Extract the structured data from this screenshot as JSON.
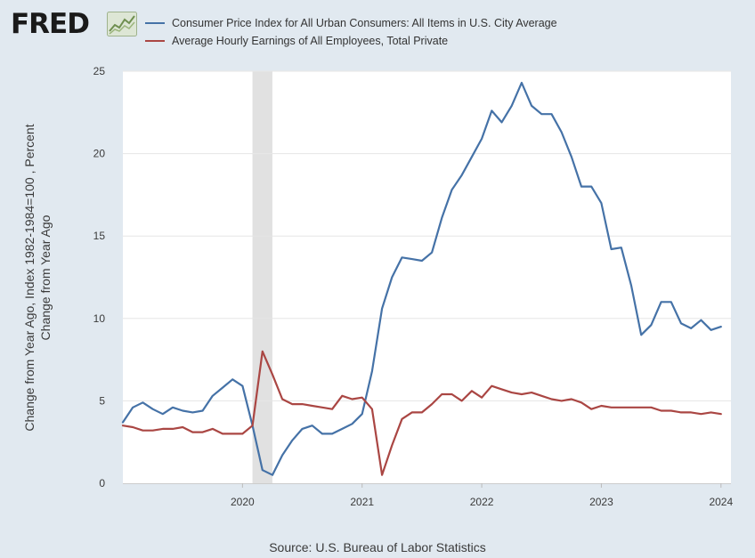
{
  "header": {
    "logo_text": "FRED"
  },
  "chart_data": {
    "type": "line",
    "title": "",
    "ylabel_line1": "Change from Year Ago, Index 1982-1984=100 , Percent",
    "ylabel_line2": "Change from Year Ago",
    "xlabel": "",
    "ylim": [
      0,
      25
    ],
    "yticks": [
      "0",
      "5",
      "10",
      "15",
      "20",
      "25"
    ],
    "xtick_labels": [
      "2020",
      "2021",
      "2022",
      "2023",
      "2024"
    ],
    "x_start": "2019-01",
    "x_end": "2024-02",
    "recession_shading": {
      "start": "2020-02",
      "end": "2020-04"
    },
    "grid": true,
    "legend_position": "top-left",
    "series": [
      {
        "name": "Consumer Price Index for All Urban Consumers: All Items in U.S. City Average",
        "color": "#4572a7",
        "values": [
          3.7,
          4.6,
          4.9,
          4.5,
          4.2,
          4.6,
          4.4,
          4.3,
          4.4,
          5.3,
          5.8,
          6.3,
          5.9,
          3.5,
          0.8,
          0.5,
          1.7,
          2.6,
          3.3,
          3.5,
          3.0,
          3.0,
          3.3,
          3.6,
          4.2,
          6.8,
          10.6,
          12.5,
          13.7,
          13.6,
          13.5,
          14.0,
          16.1,
          17.8,
          18.7,
          19.8,
          20.9,
          22.6,
          21.9,
          22.9,
          24.3,
          22.9,
          22.4,
          22.4,
          21.3,
          19.8,
          18.0,
          18.0,
          17.0,
          14.2,
          14.3,
          12.0,
          9.0,
          9.6,
          11.0,
          11.0,
          9.7,
          9.4,
          9.9,
          9.3,
          9.5
        ]
      },
      {
        "name": "Average Hourly Earnings of All Employees, Total Private",
        "color": "#aa4643",
        "values": [
          3.5,
          3.4,
          3.2,
          3.2,
          3.3,
          3.3,
          3.4,
          3.1,
          3.1,
          3.3,
          3.0,
          3.0,
          3.0,
          3.5,
          8.0,
          6.6,
          5.1,
          4.8,
          4.8,
          4.7,
          4.6,
          4.5,
          5.3,
          5.1,
          5.2,
          4.5,
          0.5,
          2.3,
          3.9,
          4.3,
          4.3,
          4.8,
          5.4,
          5.4,
          5.0,
          5.6,
          5.2,
          5.9,
          5.7,
          5.5,
          5.4,
          5.5,
          5.3,
          5.1,
          5.0,
          5.1,
          4.9,
          4.5,
          4.7,
          4.6,
          4.6,
          4.6,
          4.6,
          4.6,
          4.4,
          4.4,
          4.3,
          4.3,
          4.2,
          4.3,
          4.2
        ]
      }
    ]
  },
  "footer": {
    "source": "Source: U.S. Bureau of Labor Statistics"
  }
}
